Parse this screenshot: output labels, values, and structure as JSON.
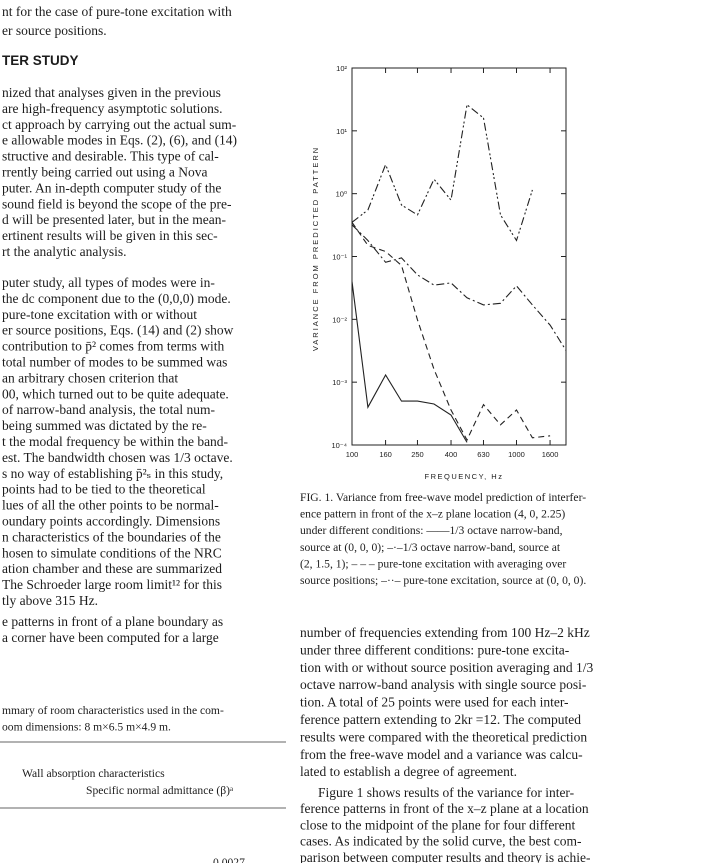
{
  "left_column": {
    "intro": [
      "nt for the case of pure-tone excitation with",
      "er source positions."
    ],
    "heading": "TER STUDY",
    "paragraphs": [
      [
        "nized that analyses given in the previous",
        "are high-frequency asymptotic solutions.",
        "ct approach by carrying out the actual sum-",
        "e allowable modes in Eqs. (2), (6), and (14)",
        "structive and desirable.  This type of cal-",
        "rrently being carried out using a Nova",
        "puter.  An in-depth computer study of the",
        "sound field is beyond the scope of the pre-",
        "d will be presented later, but in the mean-",
        "ertinent results will be given in this sec-",
        "rt the analytic analysis."
      ],
      [
        "puter study, all types of modes were in-",
        "the dc component due to the (0,0,0) mode.",
        "pure-tone excitation with or without",
        "er source positions, Eqs. (14) and (2) show",
        "contribution to p̄² comes from terms with",
        "total number of modes to be summed was",
        "an arbitrary chosen criterion that",
        "00, which turned out to be quite adequate.",
        "of narrow-band analysis, the total num-",
        "being summed was dictated by the re-",
        "t the modal frequency be within the band-",
        "est.  The bandwidth chosen was 1/3 octave.",
        "s no way of establishing p̄²ₛ in this study,",
        "points had to be tied to the theoretical",
        "lues of all the other points to be normal-",
        "oundary points accordingly.  Dimensions",
        "n characteristics of the boundaries of the",
        "hosen to simulate conditions of the NRC",
        "ation chamber and these are summarized",
        "The Schroeder large room limit¹² for this",
        "tly above 315 Hz."
      ],
      [
        "e patterns in front of a plane boundary as",
        "a corner have been computed for a large"
      ]
    ],
    "table": {
      "caption": [
        "mmary of room characteristics used in the com-",
        "oom dimensions:  8 m×6.5 m×4.9 m."
      ],
      "header": [
        "Wall absorption characteristics",
        "Specific normal admittance (β)ᵃ"
      ],
      "first_value": "0.0027"
    }
  },
  "chart_data": {
    "type": "line",
    "x": [
      100,
      125,
      160,
      200,
      250,
      315,
      400,
      500,
      630,
      800,
      1000,
      1250,
      1600,
      2000
    ],
    "xlim": [
      100,
      2000
    ],
    "xticks": [
      100,
      160,
      250,
      400,
      630,
      1000,
      1600
    ],
    "xscale": "log",
    "ylim": [
      0.0001,
      100
    ],
    "yticks": [
      {
        "value": 100,
        "label": "10²"
      },
      {
        "value": 10,
        "label": "10¹"
      },
      {
        "value": 1,
        "label": "10⁰"
      },
      {
        "value": 0.1,
        "label": "10⁻¹"
      },
      {
        "value": 0.01,
        "label": "10⁻²"
      },
      {
        "value": 0.001,
        "label": "10⁻³"
      },
      {
        "value": 0.0001,
        "label": "10⁻⁴"
      }
    ],
    "yscale": "log",
    "xlabel": "FREQUENCY, Hz",
    "ylabel": "VARIANCE FROM PREDICTED PATTERN",
    "series": [
      {
        "color": "#222222",
        "dash": "solid",
        "values": [
          0.04,
          0.0004,
          0.0013,
          0.0005,
          0.0005,
          0.00045,
          0.0003,
          0.00011,
          null,
          null,
          null,
          null,
          null,
          null
        ]
      },
      {
        "color": "#222222",
        "dash": "dashdot",
        "values": [
          0.32,
          0.18,
          0.081,
          0.095,
          0.051,
          0.035,
          0.038,
          0.022,
          0.017,
          0.018,
          0.034,
          0.017,
          0.0081,
          0.0032
        ]
      },
      {
        "color": "#222222",
        "dash": "dashed",
        "values": [
          0.35,
          0.15,
          0.12,
          0.072,
          0.0098,
          0.0016,
          0.00036,
          0.00012,
          0.00044,
          0.00021,
          0.00036,
          0.00013,
          0.00014,
          null
        ]
      },
      {
        "color": "#222222",
        "dash": "dashdotdot",
        "values": [
          0.35,
          0.55,
          2.9,
          0.66,
          0.46,
          1.7,
          0.79,
          26,
          16,
          0.46,
          0.18,
          1.15,
          null,
          null
        ]
      }
    ]
  },
  "caption": [
    "FIG. 1.  Variance from free-wave model prediction of interfer-",
    "ence pattern in front of the x–z plane location (4, 0, 2.25)",
    "under different conditions:  ——1/3 octave narrow-band,",
    "source at (0, 0, 0);  –·–1/3 octave narrow-band, source at",
    "(2, 1.5, 1);  – – – pure-tone excitation with averaging over",
    "source positions;  –··– pure-tone excitation, source at (0, 0, 0)."
  ],
  "body": [
    [
      "number of frequencies extending from 100 Hz–2 kHz",
      "under three different conditions:  pure-tone excita-",
      "tion with or without source position averaging and 1/3",
      "octave narrow-band analysis with single source posi-",
      "tion.  A total of 25 points were used for each inter-",
      "ference pattern extending to 2kr =12.  The computed",
      "results were compared with the theoretical prediction",
      "from the free-wave model and a variance was calcu-",
      "lated to establish a degree of agreement."
    ],
    [
      "Figure 1 shows results of the variance for inter-",
      "ference patterns in front of the x–z plane at a location",
      "close to the midpoint of the plane for four different",
      "cases.  As indicated by the solid curve, the best com-",
      "parison between computer results and theory is achie-"
    ]
  ]
}
